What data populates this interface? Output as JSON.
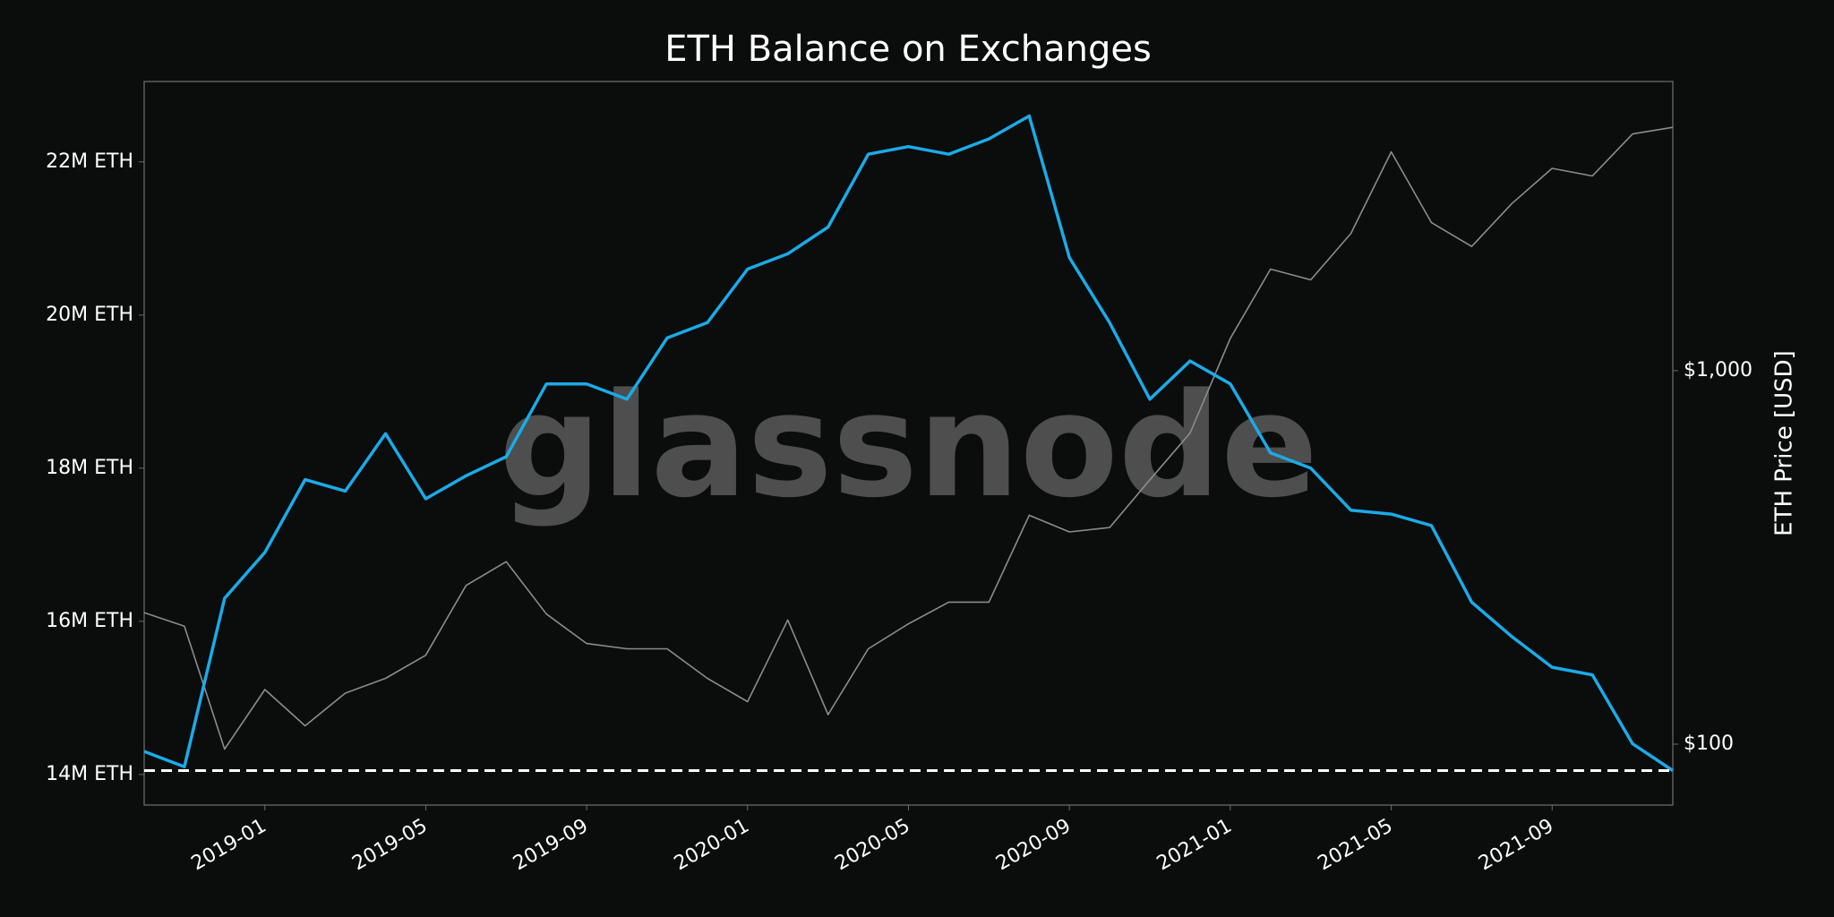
{
  "chart_data": {
    "type": "line",
    "title": "ETH Balance on Exchanges",
    "watermark": "glassnode",
    "y2label": "ETH Price [USD]",
    "x": [
      "2018-10",
      "2018-11",
      "2018-12",
      "2019-01",
      "2019-02",
      "2019-03",
      "2019-04",
      "2019-05",
      "2019-06",
      "2019-07",
      "2019-08",
      "2019-09",
      "2019-10",
      "2019-11",
      "2019-12",
      "2020-01",
      "2020-02",
      "2020-03",
      "2020-04",
      "2020-05",
      "2020-06",
      "2020-07",
      "2020-08",
      "2020-09",
      "2020-10",
      "2020-11",
      "2020-12",
      "2021-01",
      "2021-02",
      "2021-03",
      "2021-04",
      "2021-05",
      "2021-06",
      "2021-07",
      "2021-08",
      "2021-09",
      "2021-10",
      "2021-11",
      "2021-12"
    ],
    "xlim": [
      "2018-10",
      "2021-12"
    ],
    "xticks": [
      "2019-01",
      "2019-05",
      "2019-09",
      "2020-01",
      "2020-05",
      "2020-09",
      "2021-01",
      "2021-05",
      "2021-09"
    ],
    "series": [
      {
        "name": "ETH Balance on Exchanges",
        "color": "#1aabe8",
        "axis": "y",
        "values": [
          14300000,
          14100000,
          16300000,
          16900000,
          17850000,
          17700000,
          18450000,
          17600000,
          17900000,
          18150000,
          19100000,
          19100000,
          18900000,
          19700000,
          19900000,
          20600000,
          20800000,
          21150000,
          22100000,
          22200000,
          22100000,
          22300000,
          22600000,
          20750000,
          19900000,
          18900000,
          19400000,
          19100000,
          18200000,
          18000000,
          17450000,
          17400000,
          17250000,
          16250000,
          15800000,
          15400000,
          15300000,
          14400000,
          14050000
        ]
      },
      {
        "name": "ETH Price [USD]",
        "color": "#8c8c8c",
        "axis": "y2",
        "values": [
          225,
          207,
          97,
          140,
          112,
          137,
          150,
          173,
          266,
          308,
          223,
          186,
          180,
          180,
          150,
          130,
          215,
          120,
          180,
          210,
          240,
          240,
          410,
          370,
          380,
          510,
          680,
          1220,
          1870,
          1750,
          2330,
          3850,
          2490,
          2150,
          2800,
          3480,
          3320,
          4300,
          4480
        ]
      }
    ],
    "ylim": [
      13600000,
      23050000
    ],
    "yticks": [
      {
        "value": 14000000,
        "label": "14M ETH"
      },
      {
        "value": 16000000,
        "label": "16M ETH"
      },
      {
        "value": 18000000,
        "label": "18M ETH"
      },
      {
        "value": 20000000,
        "label": "20M ETH"
      },
      {
        "value": 22000000,
        "label": "22M ETH"
      }
    ],
    "y2lim": [
      68.7,
      5943
    ],
    "y2scale": "log",
    "y2ticks": [
      {
        "value": 100,
        "label": "$100"
      },
      {
        "value": 1000,
        "label": "$1,000"
      }
    ],
    "reference_line": 14050000
  }
}
